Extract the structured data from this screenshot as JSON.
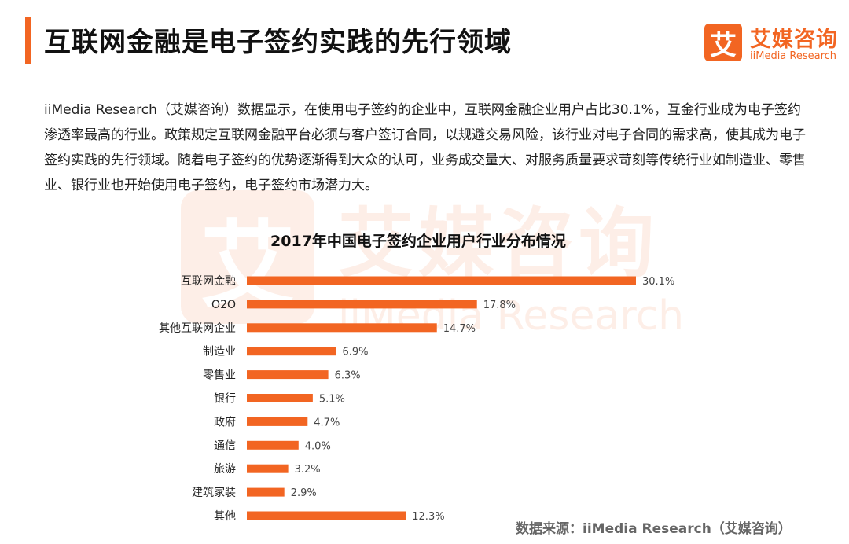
{
  "header": {
    "title": "互联网金融是电子签约实践的先行领域"
  },
  "logo": {
    "mark": "艾",
    "name_cn": "艾媒咨询",
    "name_en": "iiMedia Research"
  },
  "intro": {
    "text": "iiMedia Research（艾媒咨询）数据显示，在使用电子签约的企业中，互联网金融企业用户占比30.1%，互金行业成为电子签约渗透率最高的行业。政策规定互联网金融平台必须与客户签订合同，以规避交易风险，该行业对电子合同的需求高，使其成为电子签约实践的先行领域。随着电子签约的优势逐渐得到大众的认可，业务成交量大、对服务质量要求苛刻等传统行业如制造业、零售业、银行业也开始使用电子签约，电子签约市场潜力大。"
  },
  "watermark": {
    "mark": "艾",
    "cn": "艾媒咨询",
    "en": "iiMedia Research"
  },
  "chart_data": {
    "type": "bar",
    "orientation": "horizontal",
    "title": "2017年中国电子签约企业用户行业分布情况",
    "categories": [
      "互联网金融",
      "O2O",
      "其他互联网企业",
      "制造业",
      "零售业",
      "银行",
      "政府",
      "通信",
      "旅游",
      "建筑家装",
      "其他"
    ],
    "values": [
      30.1,
      17.8,
      14.7,
      6.9,
      6.3,
      5.1,
      4.7,
      4.0,
      3.2,
      2.9,
      12.3
    ],
    "value_labels": [
      "30.1%",
      "17.8%",
      "14.7%",
      "6.9%",
      "6.3%",
      "5.1%",
      "4.7%",
      "4.0%",
      "3.2%",
      "2.9%",
      "12.3%"
    ],
    "xlim": [
      0,
      30.1
    ],
    "bar_color": "#f26522",
    "grid": false,
    "legend": "none"
  },
  "footer": {
    "source": "数据来源：iiMedia Research（艾媒咨询）"
  }
}
